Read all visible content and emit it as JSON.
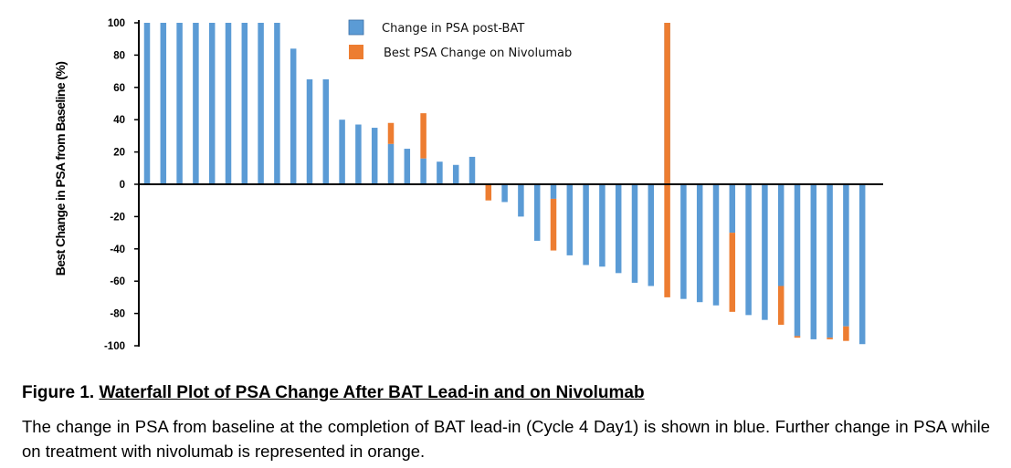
{
  "chart_data": {
    "type": "bar",
    "ylabel": "Best Change in PSA from Baseline (%)",
    "ylim": [
      -100,
      100
    ],
    "yticks": [
      100,
      80,
      60,
      40,
      20,
      0,
      -20,
      -40,
      -60,
      -80,
      -100
    ],
    "grid": false,
    "legend_position": "top-center",
    "colors": {
      "post_bat": "#5b9bd5",
      "nivolumab": "#ed7d31"
    },
    "series": [
      {
        "name": "Change in PSA post-BAT",
        "values": [
          100,
          100,
          100,
          100,
          100,
          100,
          100,
          100,
          100,
          84,
          65,
          65,
          40,
          37,
          35,
          25,
          22,
          16,
          14,
          12,
          17,
          0,
          -11,
          -20,
          -35,
          -9,
          -44,
          -50,
          -51,
          -55,
          -61,
          -63,
          100,
          -71,
          -73,
          -75,
          -30,
          -81,
          -84,
          -63,
          -94,
          -96,
          -95,
          -88,
          -99
        ]
      },
      {
        "name": "Best PSA Change on Nivolumab",
        "values": [
          null,
          null,
          null,
          null,
          null,
          null,
          null,
          null,
          null,
          null,
          null,
          null,
          null,
          null,
          null,
          38,
          null,
          44,
          null,
          null,
          null,
          -10,
          null,
          null,
          null,
          -41,
          null,
          null,
          null,
          null,
          null,
          null,
          -70,
          null,
          null,
          null,
          -79,
          null,
          null,
          -87,
          -95,
          null,
          -96,
          -97,
          null
        ]
      }
    ]
  },
  "caption": {
    "figure_label": "Figure 1.",
    "title": "Waterfall Plot of PSA Change After BAT Lead-in and on Nivolumab",
    "body": "The change in PSA from baseline at the completion of BAT lead-in (Cycle 4 Day1) is shown in blue. Further change in PSA while on treatment with nivolumab is represented in orange."
  }
}
